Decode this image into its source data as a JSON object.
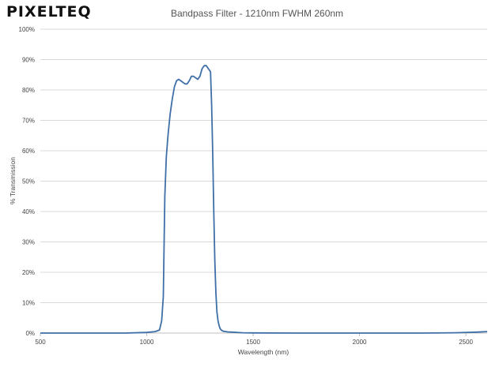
{
  "logo": {
    "text": "PIXELTEQ"
  },
  "chart_data": {
    "type": "line",
    "title": "Bandpass Filter - 1210nm FWHM 260nm",
    "xlabel": "Wavelength (nm)",
    "ylabel": "% Transmission",
    "xlim": [
      500,
      2600
    ],
    "ylim": [
      0,
      100
    ],
    "x_ticks": [
      500,
      1000,
      1500,
      2000,
      2500
    ],
    "x_tick_labels": [
      "500",
      "1000",
      "1500",
      "2000",
      "2500"
    ],
    "y_ticks": [
      0,
      10,
      20,
      30,
      40,
      50,
      60,
      70,
      80,
      90,
      100
    ],
    "y_tick_labels": [
      "0%",
      "10%",
      "20%",
      "30%",
      "40%",
      "50%",
      "60%",
      "70%",
      "80%",
      "90%",
      "100%"
    ],
    "grid": "horizontal",
    "colors": {
      "line": "#3f6fa8",
      "grid": "#d9d9d9",
      "axis": "#bfbfbf"
    },
    "series": [
      {
        "x": [
          500,
          900,
          1000,
          1040,
          1060,
          1070,
          1078,
          1085,
          1092,
          1100,
          1110,
          1120,
          1130,
          1140,
          1150,
          1160,
          1170,
          1180,
          1190,
          1200,
          1210,
          1220,
          1230,
          1240,
          1250,
          1260,
          1270,
          1280,
          1290,
          1300,
          1305,
          1310,
          1315,
          1320,
          1325,
          1330,
          1335,
          1340,
          1345,
          1350,
          1360,
          1380,
          1400,
          1450,
          1500,
          1700,
          2000,
          2300,
          2450,
          2550,
          2600
        ],
        "y": [
          0,
          0,
          0.2,
          0.5,
          1,
          4,
          12,
          45,
          58,
          65,
          72,
          77,
          81,
          83,
          83.5,
          83,
          82.5,
          82,
          82,
          83,
          84.5,
          84.5,
          84,
          83.5,
          84.5,
          87,
          88,
          88,
          87,
          86,
          75,
          60,
          40,
          24,
          13,
          7,
          4,
          2.5,
          1.5,
          1,
          0.6,
          0.4,
          0.3,
          0.1,
          0.05,
          0,
          0,
          0,
          0.1,
          0.3,
          0.5
        ]
      }
    ]
  }
}
